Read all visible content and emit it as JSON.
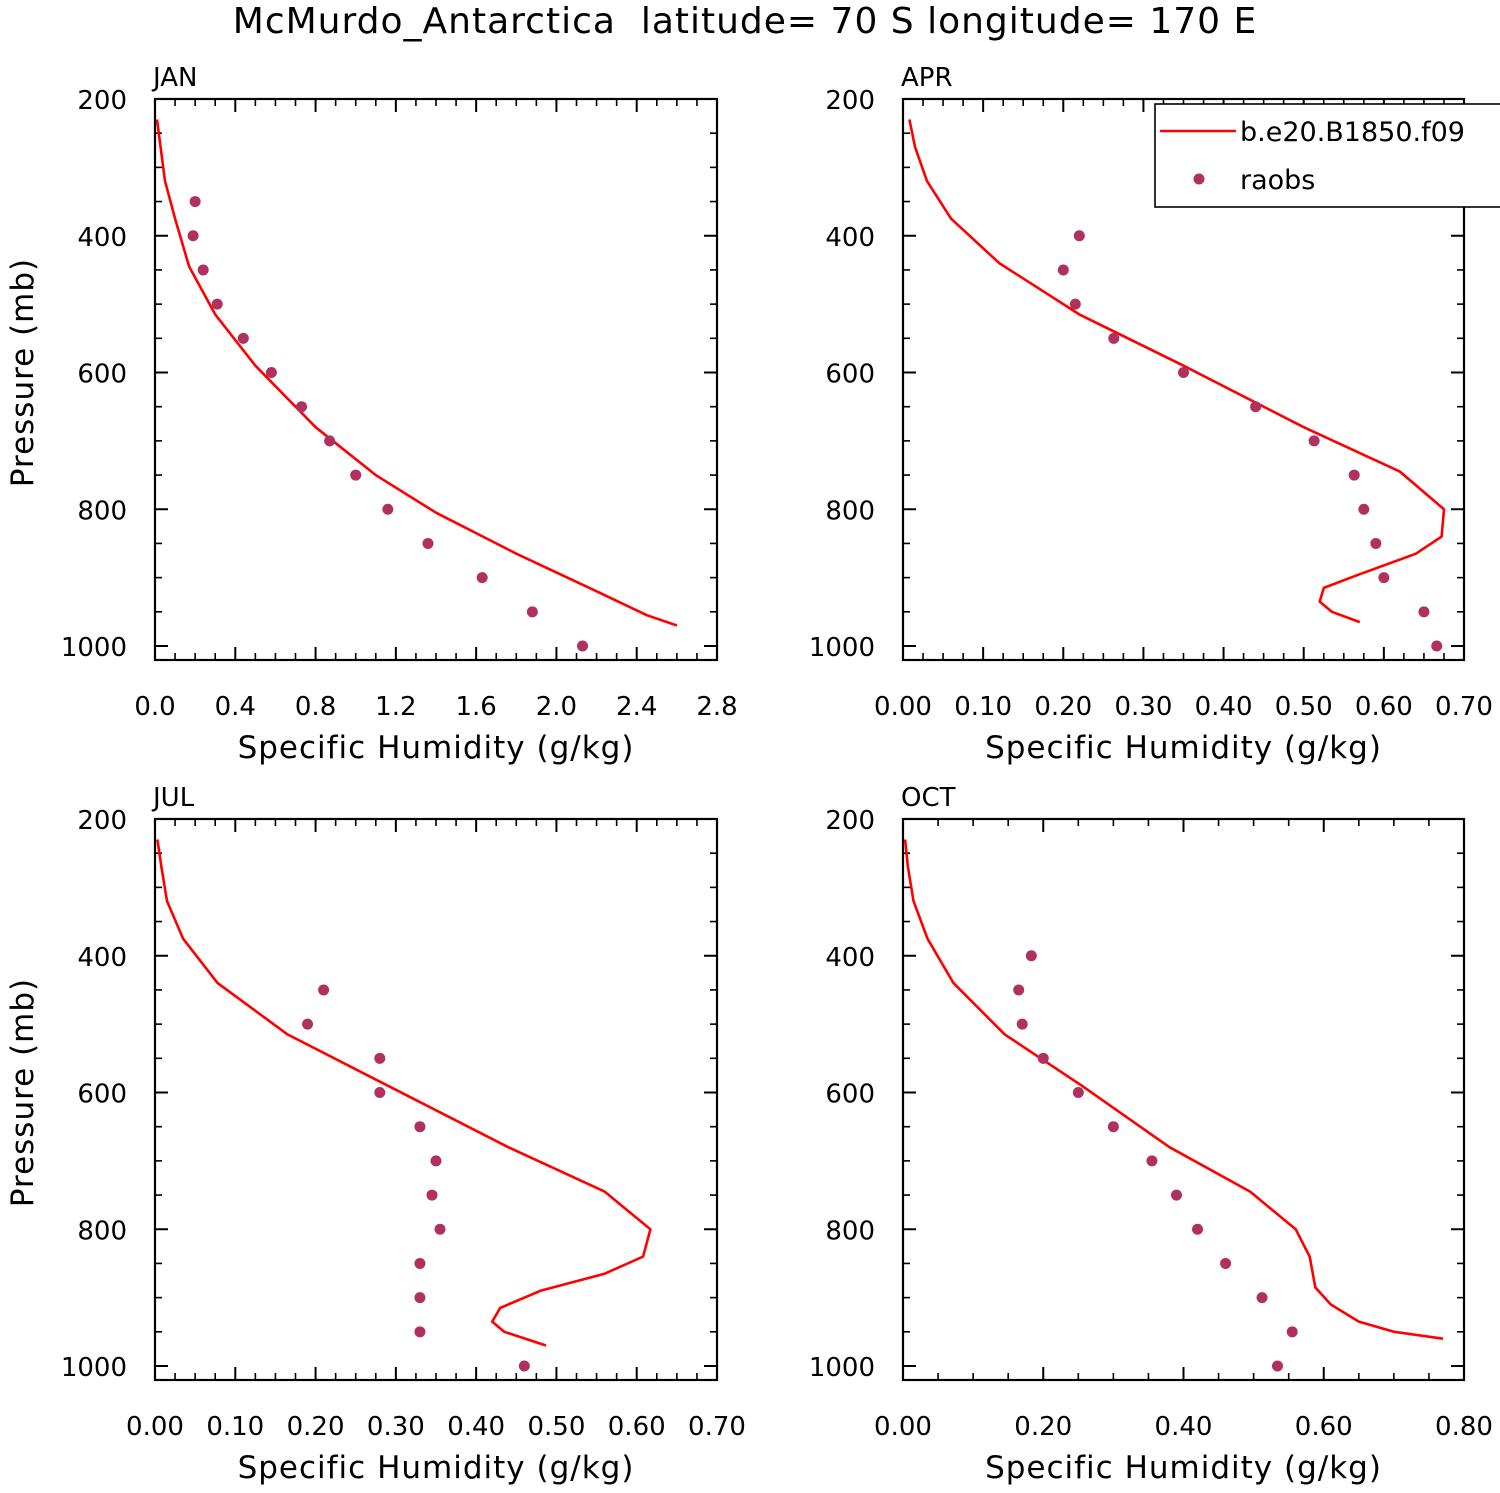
{
  "title": "McMurdo_Antarctica  latitude= 70 S longitude= 170 E",
  "colors": {
    "model": "#ff0000",
    "obs": "#b03060",
    "axis": "#000000"
  },
  "legend": {
    "model_label": "b.e20.B1850.f09",
    "obs_label": "raobs"
  },
  "chart_data": [
    {
      "type": "line",
      "panel": "JAN",
      "xlabel": "Specific Humidity (g/kg)",
      "ylabel": "Pressure (mb)",
      "xlim": [
        0,
        2.8
      ],
      "xticks": [
        "0.0",
        "0.4",
        "0.8",
        "1.2",
        "1.6",
        "2.0",
        "2.4",
        "2.8"
      ],
      "ylim": [
        200,
        1000
      ],
      "yticks": [
        "200",
        "400",
        "600",
        "800",
        "1000"
      ],
      "model": {
        "x": [
          0.01,
          0.05,
          0.1,
          0.17,
          0.3,
          0.5,
          0.8,
          1.1,
          1.4,
          1.8,
          2.2,
          2.45,
          2.6
        ],
        "y": [
          230,
          320,
          375,
          445,
          515,
          590,
          680,
          750,
          805,
          865,
          920,
          955,
          970
        ]
      },
      "obs": {
        "x": [
          0.2,
          0.19,
          0.24,
          0.31,
          0.44,
          0.58,
          0.73,
          0.87,
          1.0,
          1.16,
          1.36,
          1.63,
          1.88,
          2.13
        ],
        "y": [
          350,
          400,
          450,
          500,
          550,
          600,
          650,
          700,
          750,
          800,
          850,
          900,
          950,
          1000
        ]
      }
    },
    {
      "type": "line",
      "panel": "APR",
      "xlabel": "Specific Humidity (g/kg)",
      "ylabel": "",
      "xlim": [
        0,
        0.7
      ],
      "xticks": [
        "0.00",
        "0.10",
        "0.20",
        "0.30",
        "0.40",
        "0.50",
        "0.60",
        "0.70"
      ],
      "ylim": [
        200,
        1000
      ],
      "yticks": [
        "200",
        "400",
        "600",
        "800",
        "1000"
      ],
      "model": {
        "x": [
          0.008,
          0.015,
          0.03,
          0.06,
          0.12,
          0.22,
          0.35,
          0.5,
          0.62,
          0.675,
          0.672,
          0.64,
          0.57,
          0.525,
          0.52,
          0.535,
          0.57
        ],
        "y": [
          230,
          270,
          320,
          375,
          440,
          515,
          590,
          680,
          745,
          800,
          840,
          865,
          895,
          915,
          935,
          950,
          965
        ]
      },
      "obs": {
        "x": [
          0.22,
          0.2,
          0.215,
          0.263,
          0.35,
          0.44,
          0.513,
          0.563,
          0.575,
          0.59,
          0.6,
          0.65,
          0.666
        ],
        "y": [
          400,
          450,
          500,
          550,
          600,
          650,
          700,
          750,
          800,
          850,
          900,
          950,
          1000
        ]
      }
    },
    {
      "type": "line",
      "panel": "JUL",
      "xlabel": "Specific Humidity (g/kg)",
      "ylabel": "Pressure (mb)",
      "xlim": [
        0,
        0.7
      ],
      "xticks": [
        "0.00",
        "0.10",
        "0.20",
        "0.30",
        "0.40",
        "0.50",
        "0.60",
        "0.70"
      ],
      "ylim": [
        200,
        1000
      ],
      "yticks": [
        "200",
        "400",
        "600",
        "800",
        "1000"
      ],
      "model": {
        "x": [
          0.003,
          0.008,
          0.015,
          0.035,
          0.078,
          0.165,
          0.29,
          0.44,
          0.56,
          0.617,
          0.608,
          0.56,
          0.48,
          0.43,
          0.42,
          0.435,
          0.487
        ],
        "y": [
          230,
          270,
          320,
          375,
          440,
          515,
          590,
          680,
          745,
          800,
          840,
          865,
          890,
          915,
          935,
          950,
          970
        ]
      },
      "obs": {
        "x": [
          0.21,
          0.19,
          0.28,
          0.28,
          0.33,
          0.35,
          0.345,
          0.355,
          0.33,
          0.33,
          0.33,
          0.46
        ],
        "y": [
          450,
          500,
          550,
          600,
          650,
          700,
          750,
          800,
          850,
          900,
          950,
          1000
        ]
      }
    },
    {
      "type": "line",
      "panel": "OCT",
      "xlabel": "Specific Humidity (g/kg)",
      "ylabel": "",
      "xlim": [
        0,
        0.8
      ],
      "xticks": [
        "0.00",
        "0.20",
        "0.40",
        "0.60",
        "0.80"
      ],
      "ylim": [
        200,
        1000
      ],
      "yticks": [
        "200",
        "400",
        "600",
        "800",
        "1000"
      ],
      "model": {
        "x": [
          0.003,
          0.007,
          0.015,
          0.035,
          0.072,
          0.145,
          0.255,
          0.38,
          0.495,
          0.56,
          0.58,
          0.588,
          0.61,
          0.65,
          0.7,
          0.77
        ],
        "y": [
          230,
          270,
          320,
          375,
          440,
          515,
          590,
          680,
          745,
          800,
          840,
          885,
          910,
          935,
          950,
          960
        ]
      },
      "obs": {
        "x": [
          0.183,
          0.165,
          0.17,
          0.2,
          0.25,
          0.3,
          0.355,
          0.39,
          0.42,
          0.46,
          0.512,
          0.555,
          0.534
        ],
        "y": [
          400,
          450,
          500,
          550,
          600,
          650,
          700,
          750,
          800,
          850,
          900,
          950,
          1000
        ]
      }
    }
  ]
}
